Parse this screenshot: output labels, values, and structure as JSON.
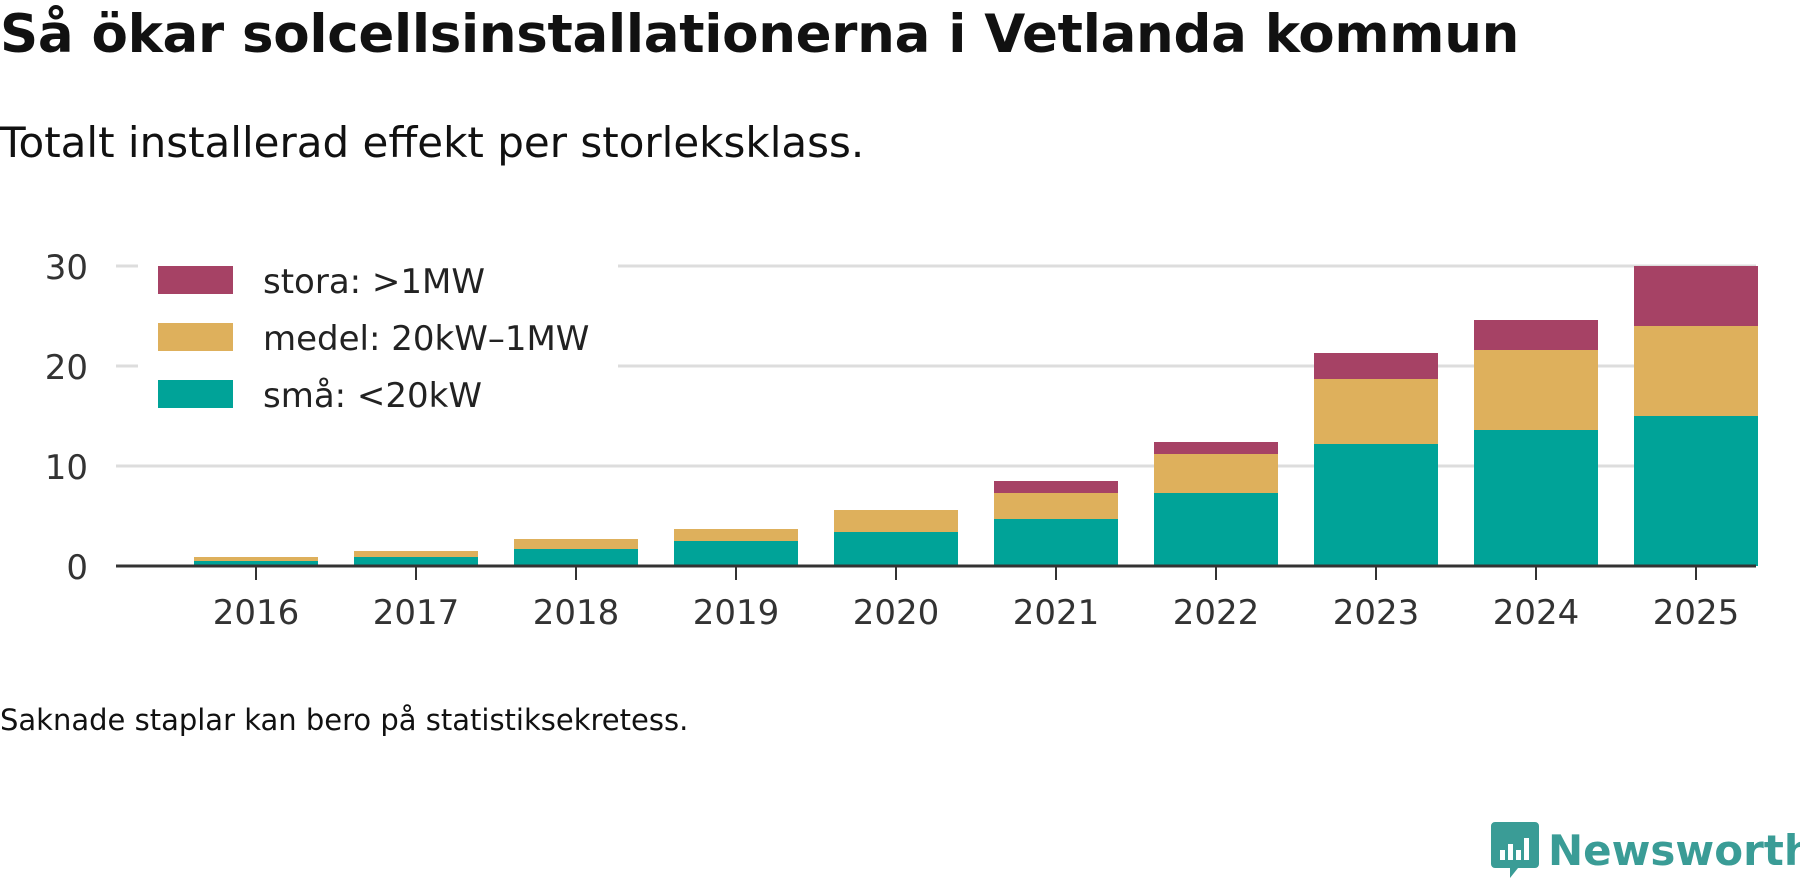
{
  "header": {
    "title": "Så ökar solcellsinstallationerna i Vetlanda kommun",
    "subtitle": "Totalt installerad effekt per storleksklass."
  },
  "footer": {
    "note": "Saknade staplar kan bero på statistiksekretess.",
    "brand": "Newsworthy",
    "brand_color": "#3a9c96",
    "brand_icon": "bar-chart-speech-bubble-icon"
  },
  "chart_data": {
    "type": "bar",
    "stacked": true,
    "categories": [
      "2016",
      "2017",
      "2018",
      "2019",
      "2020",
      "2021",
      "2022",
      "2023",
      "2024",
      "2025"
    ],
    "series": [
      {
        "name": "små: <20kW",
        "color": "#00a398",
        "values": [
          0.5,
          0.9,
          1.7,
          2.5,
          3.4,
          4.7,
          7.3,
          12.2,
          13.6,
          15.0
        ]
      },
      {
        "name": "medel: 20kW–1MW",
        "color": "#deb05c",
        "values": [
          0.4,
          0.6,
          1.0,
          1.2,
          2.2,
          2.6,
          3.9,
          6.5,
          8.0,
          9.0
        ]
      },
      {
        "name": "stora: >1MW",
        "color": "#a64265",
        "values": [
          0,
          0,
          0,
          0,
          0,
          1.2,
          1.2,
          2.6,
          3.0,
          6.0
        ]
      }
    ],
    "y_ticks": [
      0,
      10,
      20,
      30
    ],
    "ylim": [
      0,
      30
    ],
    "xlabel": "",
    "ylabel": "",
    "grid": true,
    "legend_position": "top-left",
    "legend_order": [
      "stora: >1MW",
      "medel: 20kW–1MW",
      "små: <20kW"
    ],
    "colors": {
      "grid": "#dddddd",
      "axis": "#333333",
      "text": "#333333"
    }
  }
}
